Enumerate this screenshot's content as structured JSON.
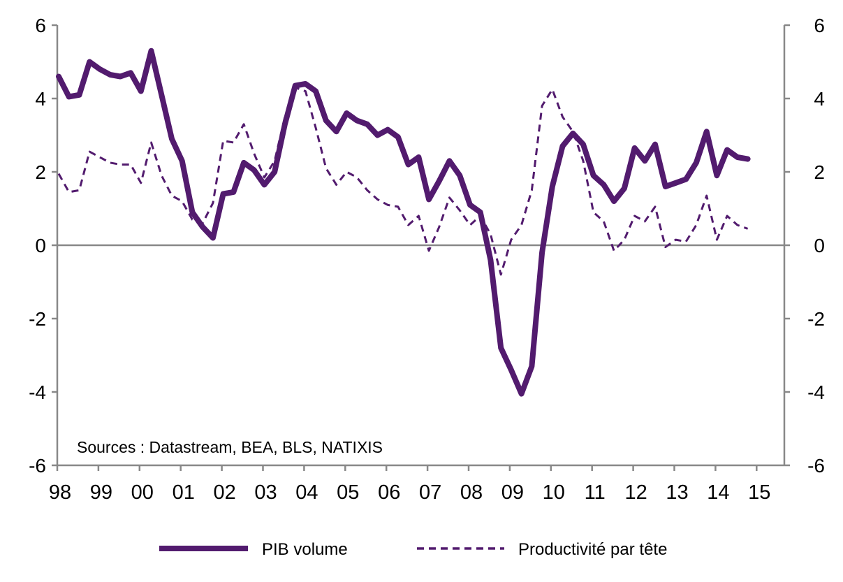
{
  "chart_data": {
    "type": "line",
    "title": "",
    "xlabel": "",
    "ylabel": "",
    "ylim": [
      -6,
      6
    ],
    "y_ticks": [
      "6",
      "4",
      "2",
      "0",
      "-2",
      "-4",
      "-6"
    ],
    "y2_ticks": [
      "6",
      "4",
      "2",
      "0",
      "-2",
      "-4",
      "-6"
    ],
    "x_ticks": [
      "98",
      "99",
      "00",
      "01",
      "02",
      "03",
      "04",
      "05",
      "06",
      "07",
      "08",
      "09",
      "10",
      "11",
      "12",
      "13",
      "14",
      "15"
    ],
    "x_frequency": "quarterly, 1998Q1 to 2014Q4",
    "grid": false,
    "zero_line": true,
    "legend_position": "bottom",
    "annotation": "Sources : Datastream, BEA, BLS, NATIXIS",
    "colors": {
      "series": "#521b6e",
      "axis": "#888888"
    },
    "series": [
      {
        "name": "PIB volume",
        "style": "solid",
        "values": [
          4.6,
          4.05,
          4.1,
          5.0,
          4.8,
          4.65,
          4.6,
          4.7,
          4.2,
          5.3,
          4.1,
          2.9,
          2.3,
          0.9,
          0.5,
          0.2,
          1.4,
          1.45,
          2.25,
          2.05,
          1.65,
          2.0,
          3.3,
          4.35,
          4.4,
          4.2,
          3.4,
          3.1,
          3.6,
          3.4,
          3.3,
          3.0,
          3.15,
          2.95,
          2.2,
          2.4,
          1.25,
          1.75,
          2.3,
          1.9,
          1.1,
          0.9,
          -0.4,
          -2.8,
          -3.4,
          -4.05,
          -3.3,
          -0.2,
          1.6,
          2.7,
          3.05,
          2.75,
          1.9,
          1.65,
          1.2,
          1.55,
          2.65,
          2.3,
          2.75,
          1.6,
          1.7,
          1.8,
          2.25,
          3.1,
          1.9,
          2.6,
          2.4,
          2.35
        ]
      },
      {
        "name": "Productivité par tête",
        "style": "dashed",
        "values": [
          1.95,
          1.45,
          1.5,
          2.55,
          2.4,
          2.25,
          2.2,
          2.2,
          1.7,
          2.8,
          1.9,
          1.35,
          1.2,
          0.7,
          0.6,
          1.15,
          2.85,
          2.8,
          3.3,
          2.5,
          1.85,
          2.3,
          3.5,
          4.3,
          4.2,
          3.2,
          2.1,
          1.65,
          2.0,
          1.85,
          1.5,
          1.25,
          1.1,
          1.05,
          0.55,
          0.8,
          -0.15,
          0.5,
          1.3,
          0.95,
          0.55,
          0.8,
          0.3,
          -0.8,
          0.15,
          0.55,
          1.5,
          3.8,
          4.25,
          3.5,
          3.1,
          2.3,
          0.9,
          0.65,
          -0.15,
          0.15,
          0.8,
          0.65,
          1.05,
          -0.05,
          0.15,
          0.1,
          0.55,
          1.35,
          0.15,
          0.8,
          0.55,
          0.45
        ]
      }
    ]
  }
}
